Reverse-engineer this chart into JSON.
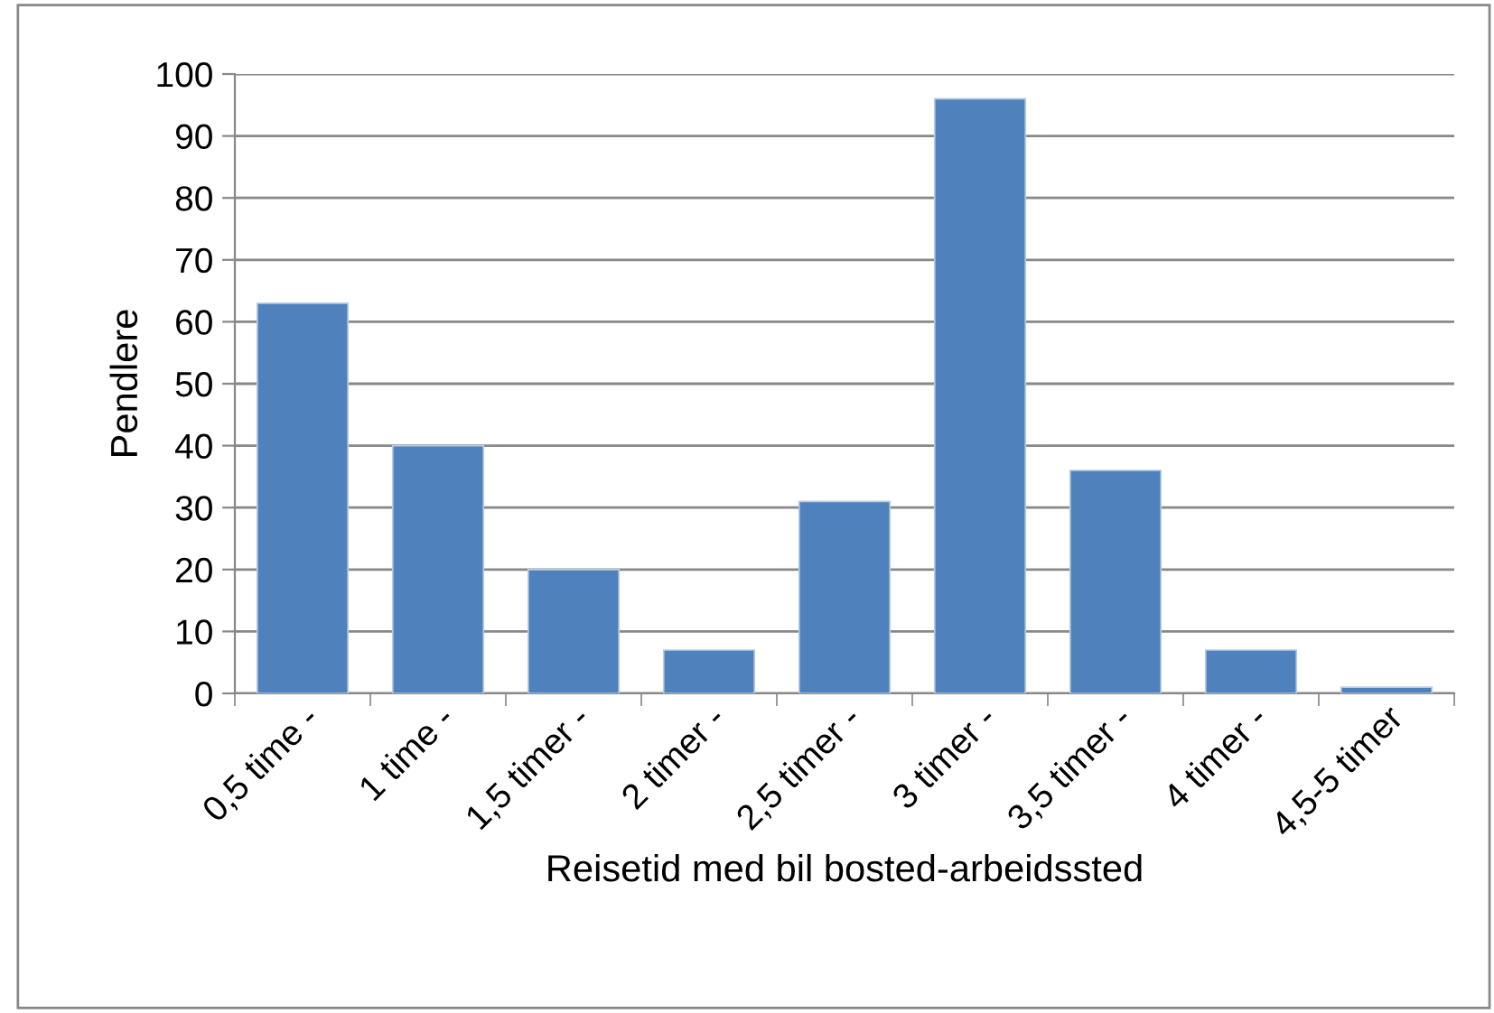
{
  "chart_data": {
    "type": "bar",
    "xlabel": "Reisetid med bil bosted-arbeidssted",
    "ylabel": "Pendlere",
    "categories": [
      "0,5 time -",
      "1 time -",
      "1,5 timer -",
      "2 timer -",
      "2,5 timer -",
      "3 timer -",
      "3,5 timer -",
      "4 timer -",
      "4,5-5 timer"
    ],
    "values": [
      63,
      40,
      20,
      7,
      31,
      96,
      36,
      7,
      1
    ],
    "color": "#4f81bd",
    "ylim": [
      0,
      100
    ],
    "yticks": [
      0,
      10,
      20,
      30,
      40,
      50,
      60,
      70,
      80,
      90,
      100
    ],
    "grid": "y"
  }
}
